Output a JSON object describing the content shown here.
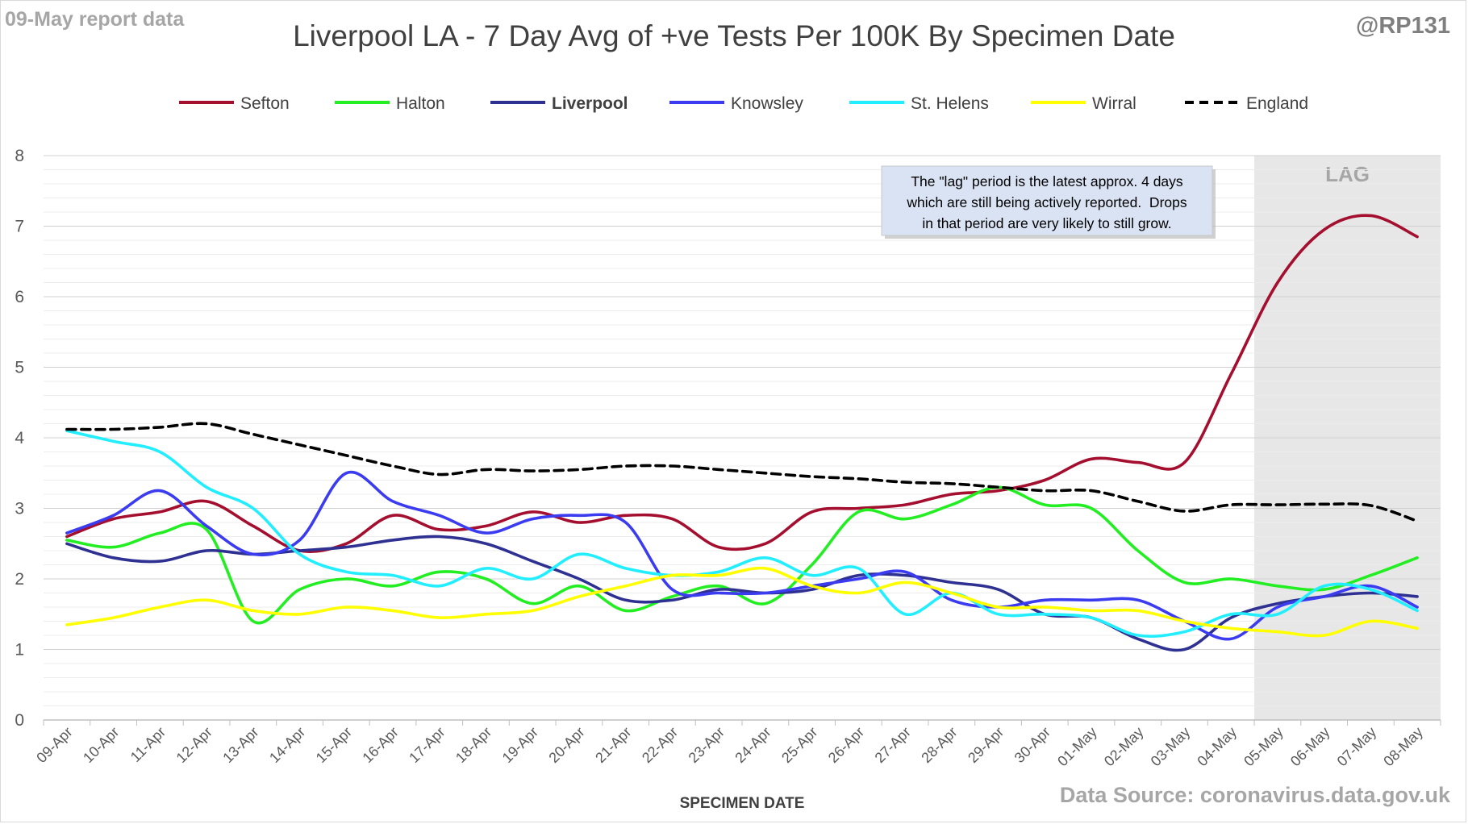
{
  "header": {
    "report_label": "09-May report data",
    "handle": "@RP131",
    "title": "Liverpool LA - 7 Day Avg of +ve Tests Per 100K By Specimen Date"
  },
  "footer": {
    "source": "Data Source: coronavirus.data.gov.uk"
  },
  "annotation": {
    "lines": [
      "The \"lag\" period is the latest approx. 4 days",
      "which are still being actively reported.  Drops",
      "in that period are very likely to still grow."
    ],
    "lag_label": "LAG"
  },
  "chart_data": {
    "type": "line",
    "title": "Liverpool LA - 7 Day Avg of +ve Tests Per 100K By Specimen Date",
    "xlabel": "SPECIMEN DATE",
    "ylabel": "",
    "ylim": [
      0,
      8
    ],
    "yticks": [
      0,
      1,
      2,
      3,
      4,
      5,
      6,
      7,
      8
    ],
    "grid": true,
    "legend_position": "top",
    "lag_region": {
      "from": "05-May",
      "to": "08-May"
    },
    "categories": [
      "09-Apr",
      "10-Apr",
      "11-Apr",
      "12-Apr",
      "13-Apr",
      "14-Apr",
      "15-Apr",
      "16-Apr",
      "17-Apr",
      "18-Apr",
      "19-Apr",
      "20-Apr",
      "21-Apr",
      "22-Apr",
      "23-Apr",
      "24-Apr",
      "25-Apr",
      "26-Apr",
      "27-Apr",
      "28-Apr",
      "29-Apr",
      "30-Apr",
      "01-May",
      "02-May",
      "03-May",
      "04-May",
      "05-May",
      "06-May",
      "07-May",
      "08-May"
    ],
    "series": [
      {
        "name": "Sefton",
        "color": "#a50f2f",
        "style": "solid",
        "bold": false,
        "values": [
          2.6,
          2.85,
          2.95,
          3.1,
          2.75,
          2.4,
          2.5,
          2.9,
          2.7,
          2.75,
          2.95,
          2.8,
          2.9,
          2.85,
          2.45,
          2.5,
          2.95,
          3.0,
          3.05,
          3.2,
          3.25,
          3.4,
          3.7,
          3.65,
          3.65,
          4.9,
          6.2,
          6.95,
          7.15,
          6.85
        ]
      },
      {
        "name": "Halton",
        "color": "#22ee22",
        "style": "solid",
        "bold": false,
        "values": [
          2.55,
          2.45,
          2.65,
          2.7,
          1.4,
          1.85,
          2.0,
          1.9,
          2.1,
          2.0,
          1.65,
          1.9,
          1.55,
          1.75,
          1.9,
          1.65,
          2.2,
          2.95,
          2.85,
          3.05,
          3.3,
          3.05,
          3.0,
          2.4,
          1.95,
          2.0,
          1.9,
          1.85,
          2.05,
          2.3
        ]
      },
      {
        "name": "Liverpool",
        "color": "#2e3192",
        "style": "solid",
        "bold": true,
        "values": [
          2.5,
          2.3,
          2.25,
          2.4,
          2.35,
          2.4,
          2.45,
          2.55,
          2.6,
          2.5,
          2.25,
          2.0,
          1.7,
          1.7,
          1.85,
          1.8,
          1.85,
          2.05,
          2.05,
          1.95,
          1.85,
          1.5,
          1.45,
          1.15,
          1.0,
          1.45,
          1.65,
          1.75,
          1.8,
          1.75
        ]
      },
      {
        "name": "Knowsley",
        "color": "#3b3bf0",
        "style": "solid",
        "bold": false,
        "values": [
          2.65,
          2.9,
          3.25,
          2.75,
          2.35,
          2.55,
          3.5,
          3.1,
          2.9,
          2.65,
          2.85,
          2.9,
          2.8,
          1.85,
          1.8,
          1.8,
          1.9,
          2.0,
          2.1,
          1.7,
          1.6,
          1.7,
          1.7,
          1.7,
          1.4,
          1.15,
          1.6,
          1.75,
          1.9,
          1.6
        ]
      },
      {
        "name": "St. Helens",
        "color": "#22eeff",
        "style": "solid",
        "bold": false,
        "values": [
          4.1,
          3.95,
          3.8,
          3.3,
          3.0,
          2.35,
          2.1,
          2.05,
          1.9,
          2.15,
          2.0,
          2.35,
          2.15,
          2.05,
          2.1,
          2.3,
          2.05,
          2.15,
          1.5,
          1.8,
          1.5,
          1.5,
          1.45,
          1.2,
          1.25,
          1.5,
          1.5,
          1.9,
          1.85,
          1.55
        ]
      },
      {
        "name": "Wirral",
        "color": "#ffff00",
        "style": "solid",
        "bold": false,
        "values": [
          1.35,
          1.45,
          1.6,
          1.7,
          1.55,
          1.5,
          1.6,
          1.55,
          1.45,
          1.5,
          1.55,
          1.75,
          1.9,
          2.05,
          2.05,
          2.15,
          1.9,
          1.8,
          1.95,
          1.8,
          1.6,
          1.6,
          1.55,
          1.55,
          1.4,
          1.3,
          1.25,
          1.2,
          1.4,
          1.3
        ]
      },
      {
        "name": "England",
        "color": "#000000",
        "style": "dashed",
        "bold": false,
        "values": [
          4.12,
          4.12,
          4.15,
          4.2,
          4.05,
          3.9,
          3.75,
          3.6,
          3.48,
          3.55,
          3.53,
          3.55,
          3.6,
          3.6,
          3.55,
          3.5,
          3.45,
          3.42,
          3.37,
          3.35,
          3.3,
          3.25,
          3.25,
          3.1,
          2.96,
          3.05,
          3.05,
          3.06,
          3.04,
          2.82
        ]
      }
    ]
  }
}
